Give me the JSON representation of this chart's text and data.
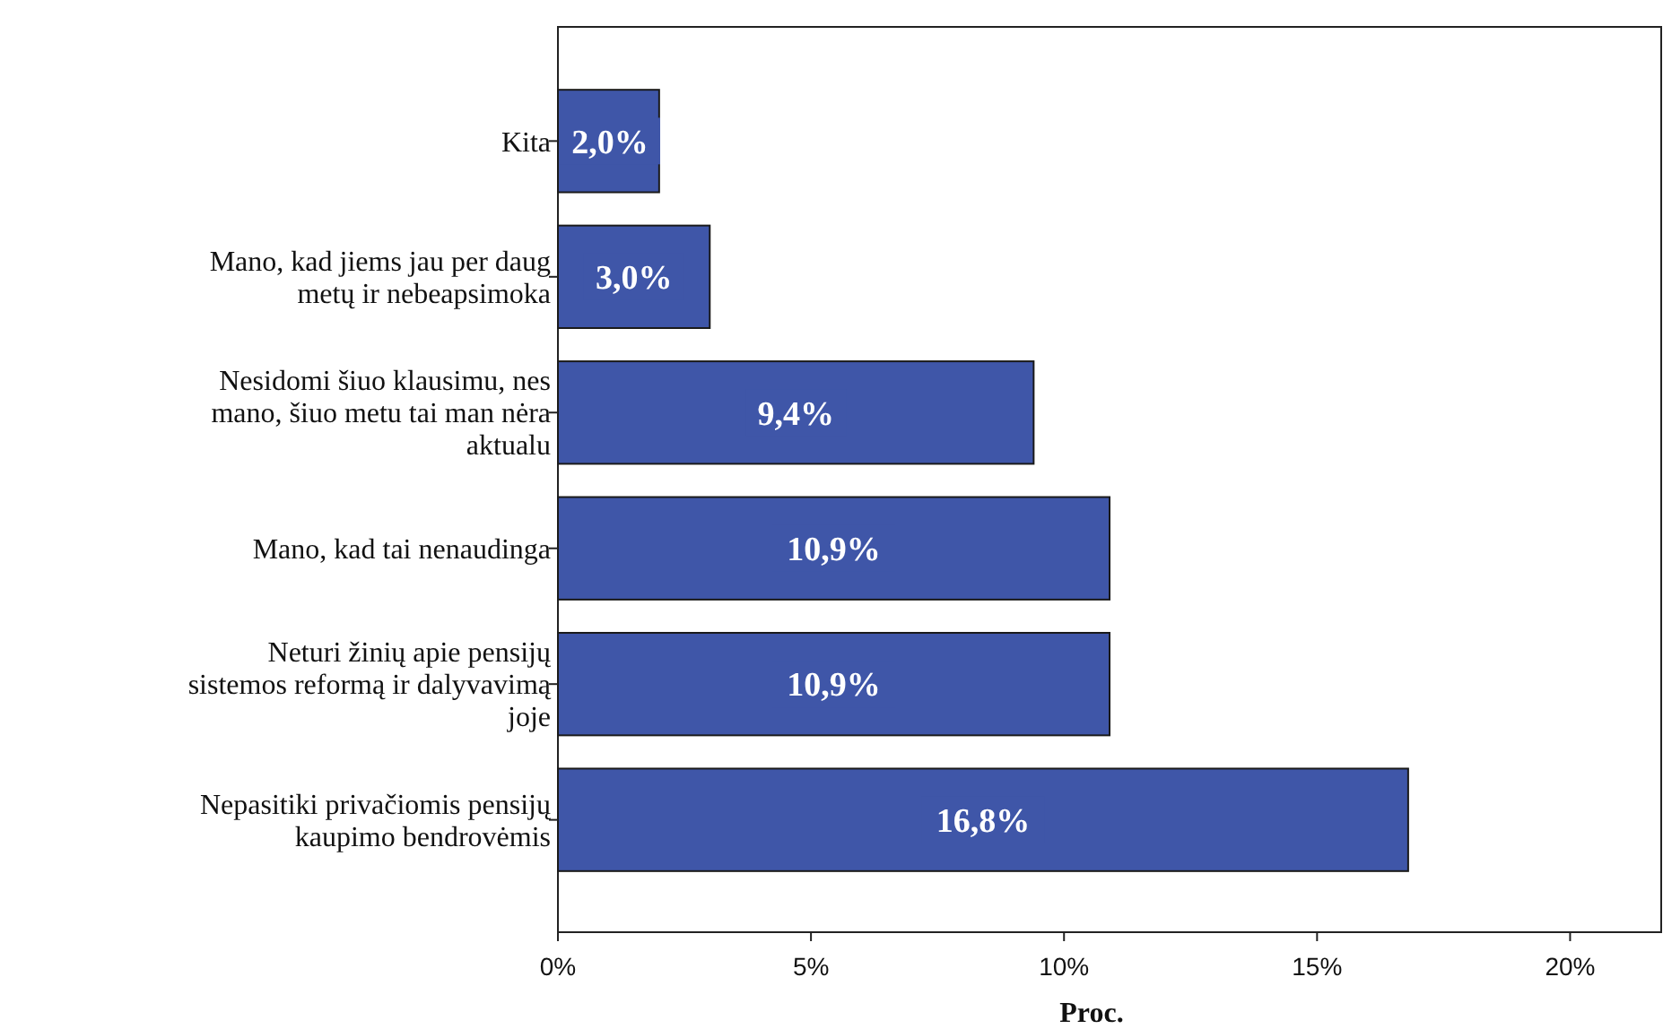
{
  "chart_data": {
    "type": "bar",
    "orientation": "horizontal",
    "xlabel": "Proc.",
    "categories": [
      "Kita",
      "Mano, kad jiems jau per daug metų ir nebeapsimoka",
      "Nesidomi šiuo klausimu, nes mano, šiuo metu tai man nėra aktualu",
      "Mano, kad tai nenaudinga",
      "Neturi žinių apie pensijų sistemos reformą ir dalyvavimą joje",
      "Nepasitiki privačiomis pensijų kaupimo bendrovėmis"
    ],
    "values": [
      2.0,
      3.0,
      9.4,
      10.9,
      10.9,
      16.8
    ],
    "value_labels": [
      "2,0%",
      "3,0%",
      "9,4%",
      "10,9%",
      "10,9%",
      "16,8%"
    ],
    "color": "#3f56a8",
    "xlim": [
      0,
      21.8
    ],
    "xticks": [
      {
        "value": 0,
        "label": "0%"
      },
      {
        "value": 5,
        "label": "5%"
      },
      {
        "value": 10,
        "label": "10%"
      },
      {
        "value": 15,
        "label": "15%"
      },
      {
        "value": 20,
        "label": "20%"
      }
    ],
    "grid": false
  }
}
